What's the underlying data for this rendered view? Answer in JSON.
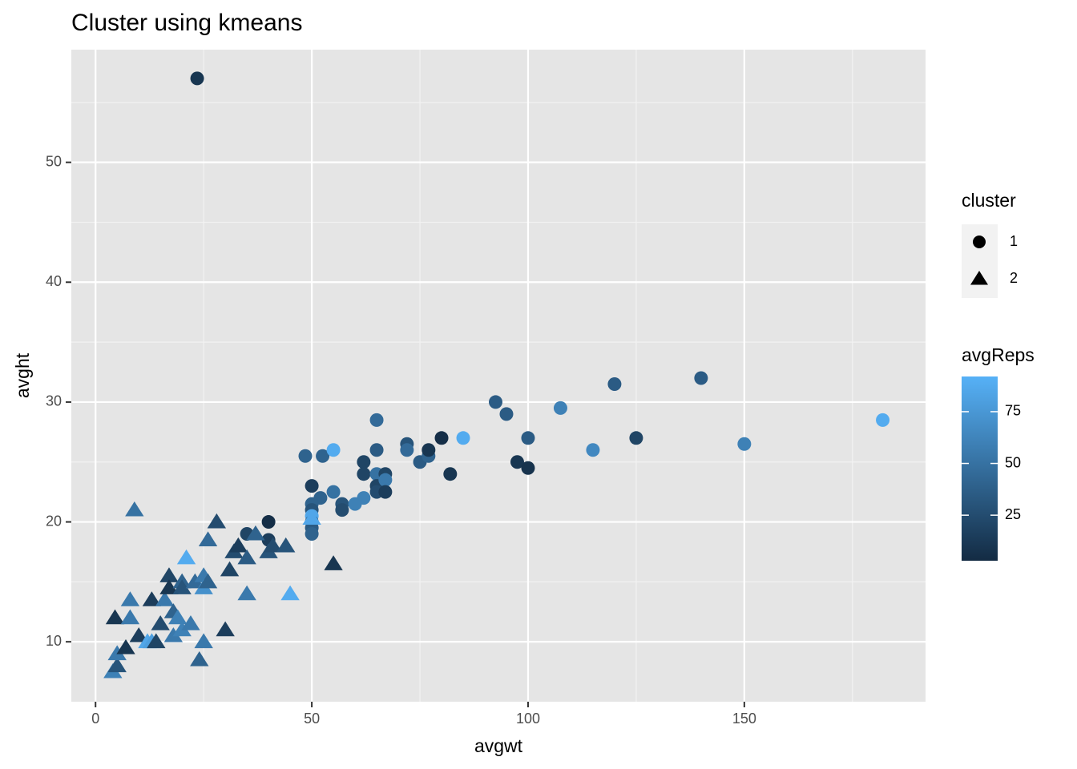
{
  "chart_data": {
    "type": "scatter",
    "title": "Cluster using kmeans",
    "x_label": "avgwt",
    "y_label": "avght",
    "xlim": [
      -5.6,
      191.9
    ],
    "ylim": [
      5,
      59.4
    ],
    "xticks": [
      0,
      50,
      100,
      150
    ],
    "yticks": [
      10,
      20,
      30,
      40,
      50
    ],
    "grid": true,
    "shape_legend_title": "cluster",
    "series": [
      {
        "name": "1",
        "shape": "circle",
        "x": [
          23.5,
          48.5,
          52.5,
          55,
          50,
          55,
          52,
          50,
          50,
          50,
          50,
          50,
          50,
          40,
          40,
          35,
          57,
          57,
          60,
          62,
          62,
          62,
          65,
          65,
          65,
          65,
          65,
          67,
          67,
          67,
          72,
          72,
          75,
          77,
          77,
          80,
          82,
          85,
          92.5,
          95,
          97.5,
          100,
          100,
          107.5,
          115,
          120,
          125,
          140,
          150,
          182
        ],
        "values": [
          57,
          25.5,
          25.5,
          26,
          23,
          22.5,
          22,
          21.5,
          21,
          20.5,
          20,
          19.5,
          19,
          20,
          18.5,
          19,
          21.5,
          21,
          21.5,
          22,
          24,
          25,
          28.5,
          26,
          24,
          23,
          22.5,
          24,
          23.5,
          22.5,
          26.5,
          26,
          25,
          25.5,
          26,
          27,
          24,
          27,
          30,
          29,
          25,
          27,
          24.5,
          29.5,
          26,
          31.5,
          27,
          32,
          26.5,
          28.5
        ],
        "avgReps": [
          10,
          40,
          40,
          88,
          15,
          50,
          40,
          40,
          30,
          85,
          20,
          35,
          40,
          5,
          15,
          20,
          30,
          25,
          60,
          60,
          20,
          20,
          45,
          35,
          50,
          20,
          25,
          20,
          55,
          15,
          30,
          45,
          35,
          40,
          10,
          5,
          10,
          88,
          35,
          35,
          10,
          35,
          8,
          60,
          65,
          35,
          20,
          35,
          60,
          88
        ]
      },
      {
        "name": "2",
        "shape": "triangle",
        "x": [
          9,
          4,
          5,
          5,
          4.5,
          8,
          8,
          7,
          10,
          12,
          13,
          13,
          14,
          15,
          16,
          17,
          17,
          18,
          18,
          19,
          20,
          21,
          20,
          20,
          22,
          23,
          24,
          25,
          25,
          25,
          26,
          26,
          28,
          30,
          31,
          32,
          33,
          35,
          35,
          37,
          40,
          41,
          44,
          45,
          50,
          55
        ],
        "values": [
          21,
          7.5,
          8,
          9,
          12,
          13.5,
          12,
          9.5,
          10.5,
          10,
          10,
          13.5,
          10,
          11.5,
          13.5,
          15.5,
          14.5,
          12.5,
          10.5,
          12,
          11,
          17,
          15,
          14.5,
          11.5,
          15,
          8.5,
          10,
          15.5,
          14.5,
          18.5,
          15,
          20,
          11,
          16,
          17.5,
          18,
          17,
          14,
          19,
          17.5,
          18,
          18,
          14,
          20.3,
          16.5
        ],
        "avgReps": [
          50,
          60,
          30,
          55,
          10,
          55,
          55,
          10,
          15,
          85,
          80,
          15,
          20,
          25,
          55,
          20,
          10,
          40,
          55,
          60,
          60,
          88,
          40,
          30,
          55,
          45,
          40,
          55,
          55,
          70,
          45,
          40,
          25,
          15,
          20,
          25,
          15,
          35,
          55,
          40,
          30,
          25,
          30,
          88,
          85,
          10
        ]
      }
    ],
    "color_scale": {
      "title": "avgReps",
      "low": "#132B43",
      "high": "#56B1F7",
      "limits": [
        3,
        92
      ],
      "ticks": [
        25,
        50,
        75
      ]
    }
  }
}
